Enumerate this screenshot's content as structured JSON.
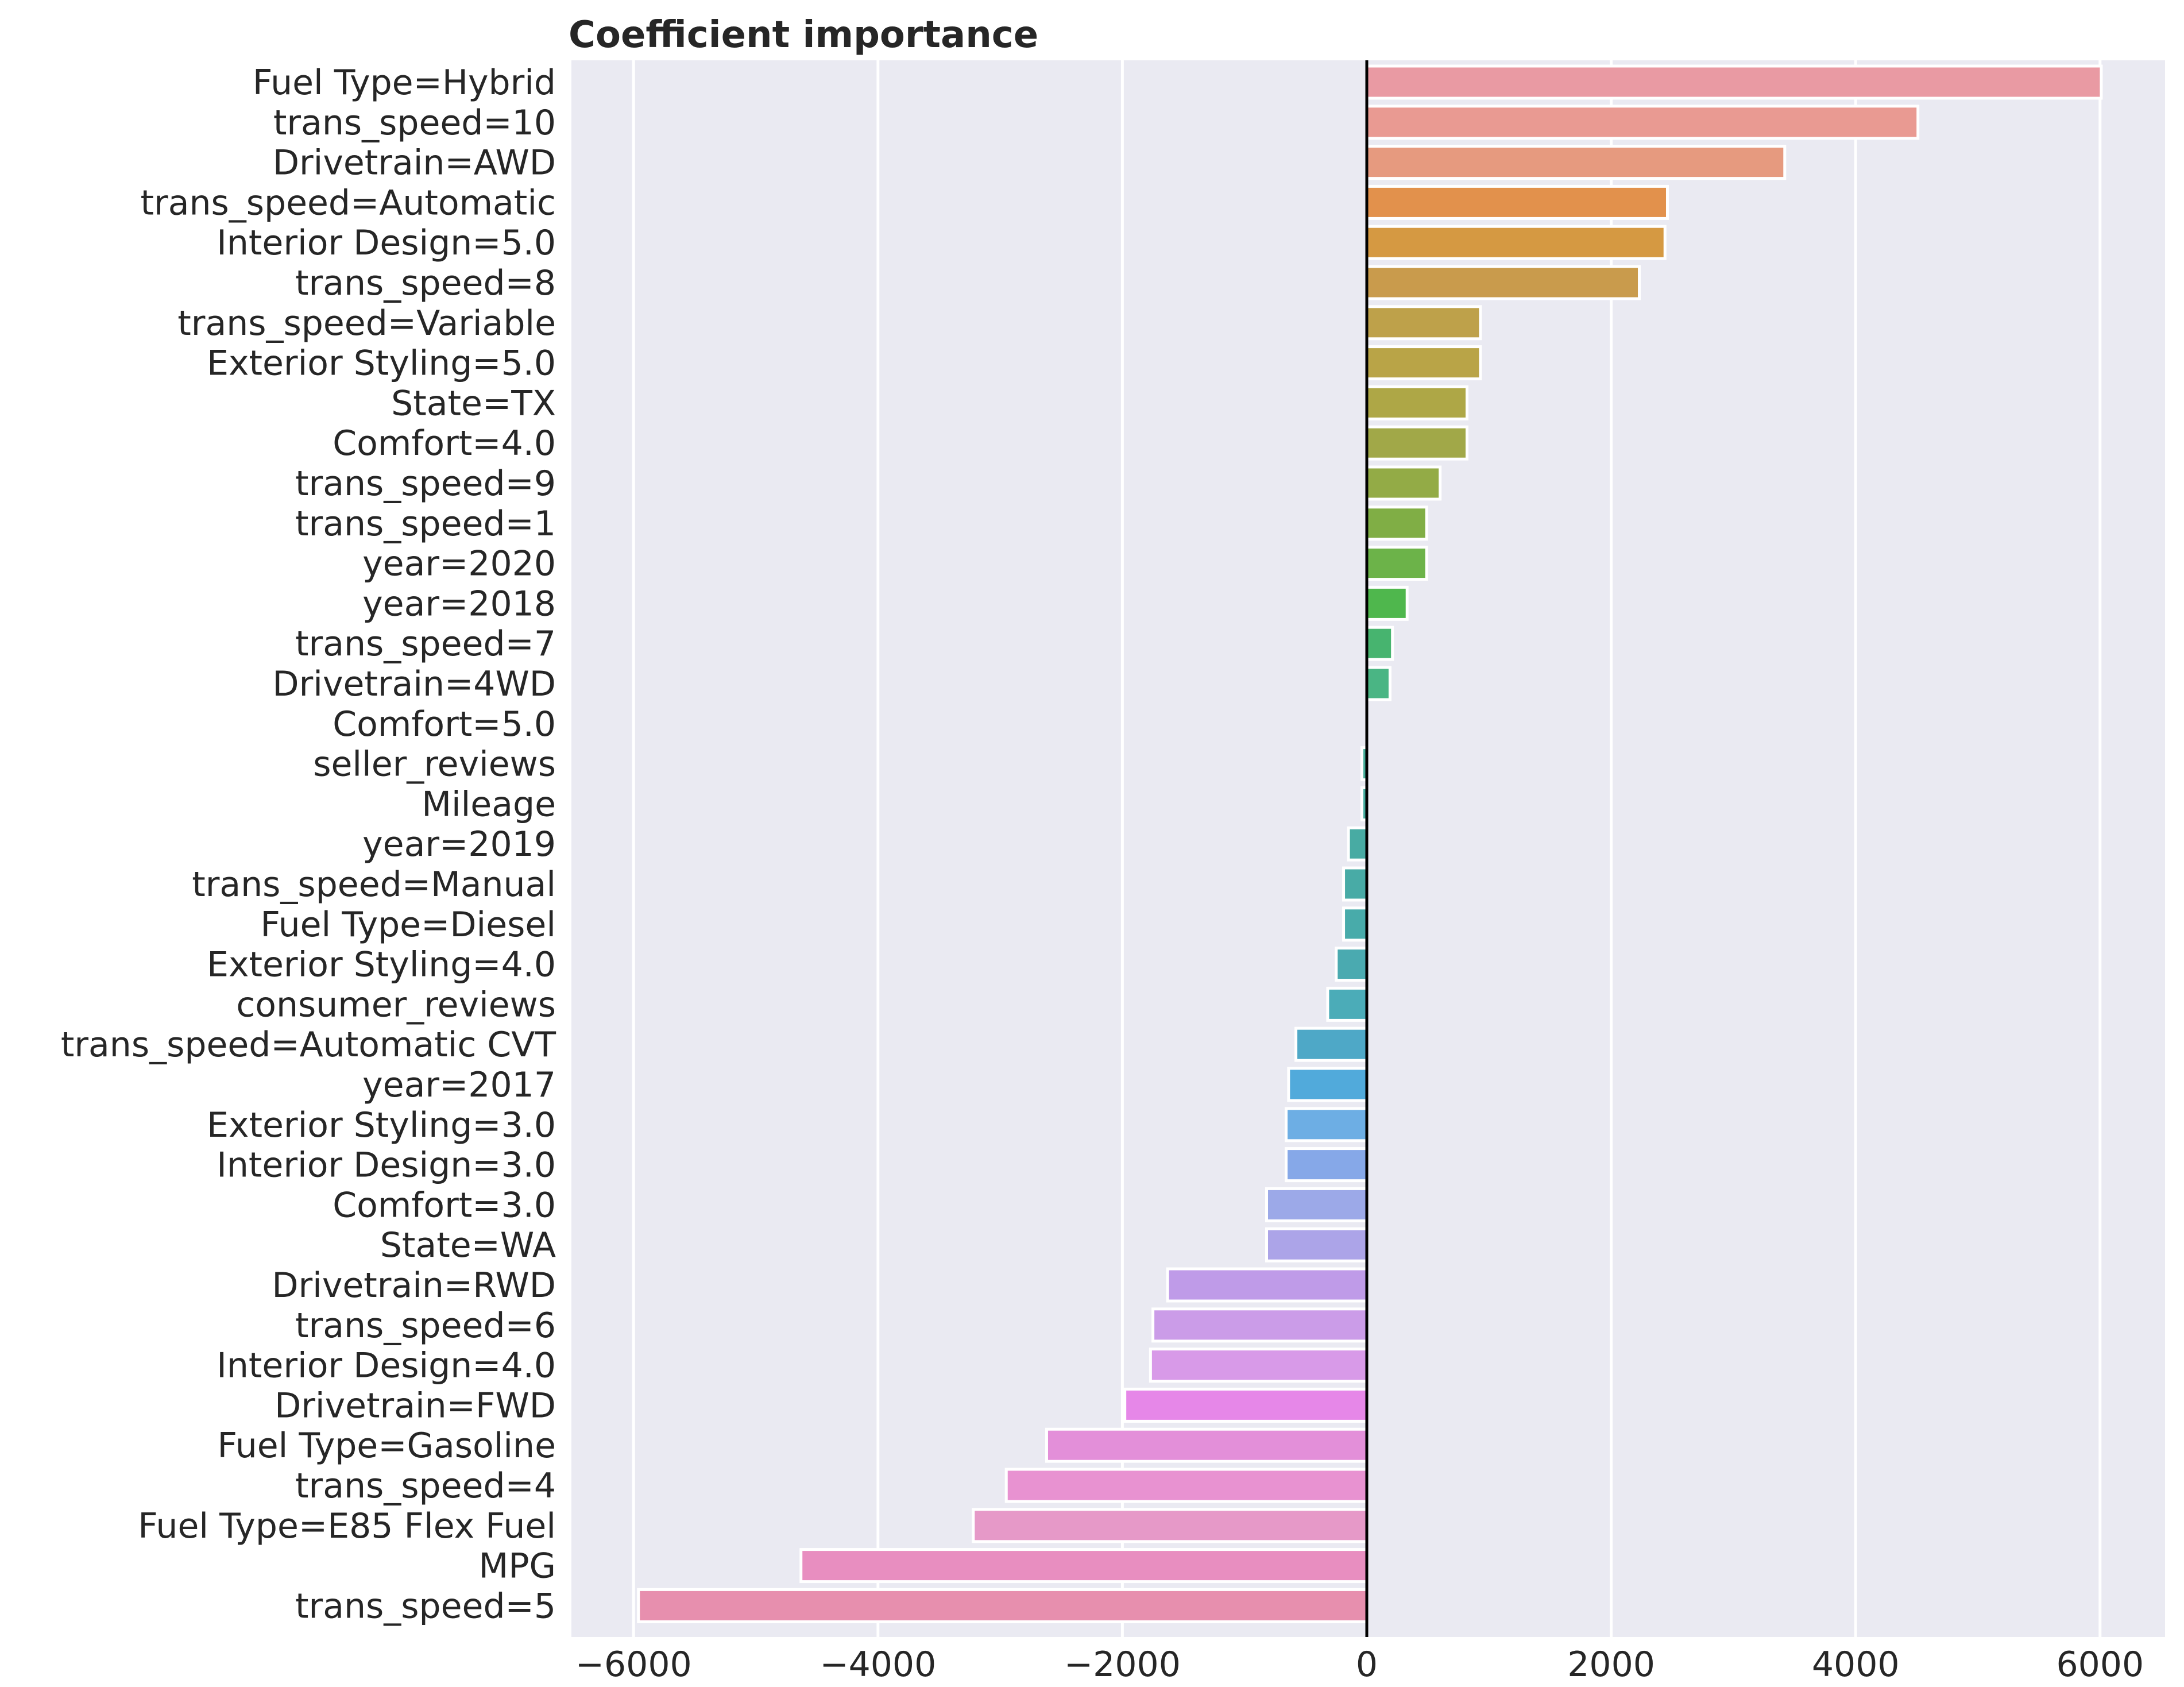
{
  "chart_data": {
    "type": "bar",
    "orientation": "horizontal",
    "title": "Coefficient importance",
    "xlabel": "",
    "ylabel": "",
    "xlim": [
      -6600,
      6600
    ],
    "xticks": [
      -6000,
      -4000,
      -2000,
      0,
      2000,
      4000,
      6000
    ],
    "xtick_labels": [
      "−6000",
      "−4000",
      "−2000",
      "0",
      "2000",
      "4000",
      "6000"
    ],
    "grid": true,
    "categories": [
      "Fuel Type=Hybrid",
      "trans_speed=10",
      "Drivetrain=AWD",
      "trans_speed=Automatic",
      "Interior Design=5.0",
      "trans_speed=8",
      "trans_speed=Variable",
      "Exterior Styling=5.0",
      "State=TX",
      "Comfort=4.0",
      "trans_speed=9",
      "trans_speed=1",
      "year=2020",
      "year=2018",
      "trans_speed=7",
      "Drivetrain=4WD",
      "Comfort=5.0",
      "seller_reviews",
      "Mileage",
      "year=2019",
      "trans_speed=Manual",
      "Fuel Type=Diesel",
      "Exterior Styling=4.0",
      "consumer_reviews",
      "trans_speed=Automatic CVT",
      "year=2017",
      "Exterior Styling=3.0",
      "Interior Design=3.0",
      "Comfort=3.0",
      "State=WA",
      "Drivetrain=RWD",
      "trans_speed=6",
      "Interior Design=4.0",
      "Drivetrain=FWD",
      "Fuel Type=Gasoline",
      "trans_speed=4",
      "Fuel Type=E85 Flex Fuel",
      "MPG",
      "trans_speed=5"
    ],
    "values": [
      6010,
      4510,
      3420,
      2460,
      2440,
      2230,
      930,
      930,
      820,
      820,
      600,
      490,
      490,
      330,
      210,
      190,
      0,
      -40,
      -40,
      -150,
      -190,
      -190,
      -250,
      -320,
      -580,
      -640,
      -660,
      -660,
      -820,
      -820,
      -1630,
      -1750,
      -1770,
      -1980,
      -2620,
      -2950,
      -3220,
      -4630,
      -5960
    ],
    "colors": [
      "#e99aa3",
      "#e99a92",
      "#e69a7f",
      "#e2914c",
      "#d59942",
      "#c99b4c",
      "#bea14a",
      "#b9a447",
      "#aea746",
      "#a1a848",
      "#93ab46",
      "#80ae45",
      "#6cb349",
      "#4fb74d",
      "#47b46f",
      "#4ab584",
      "#4cb392",
      "#48af9b",
      "#47ad9f",
      "#48aba3",
      "#48aba6",
      "#48abaa",
      "#4aaab0",
      "#4bacb8",
      "#4ea8c7",
      "#51aadb",
      "#6daee4",
      "#86a8e8",
      "#9ca9e8",
      "#aca4e8",
      "#bf9be8",
      "#cb9ce8",
      "#d89ae8",
      "#e687e8",
      "#e38fd9",
      "#e892d1",
      "#e699c8",
      "#e88ec0",
      "#e78fae"
    ],
    "bar_stroke": "#ffffff",
    "zero_line_color": "#000000",
    "background_color": "#eaeaf2",
    "grid_color": "#ffffff"
  }
}
